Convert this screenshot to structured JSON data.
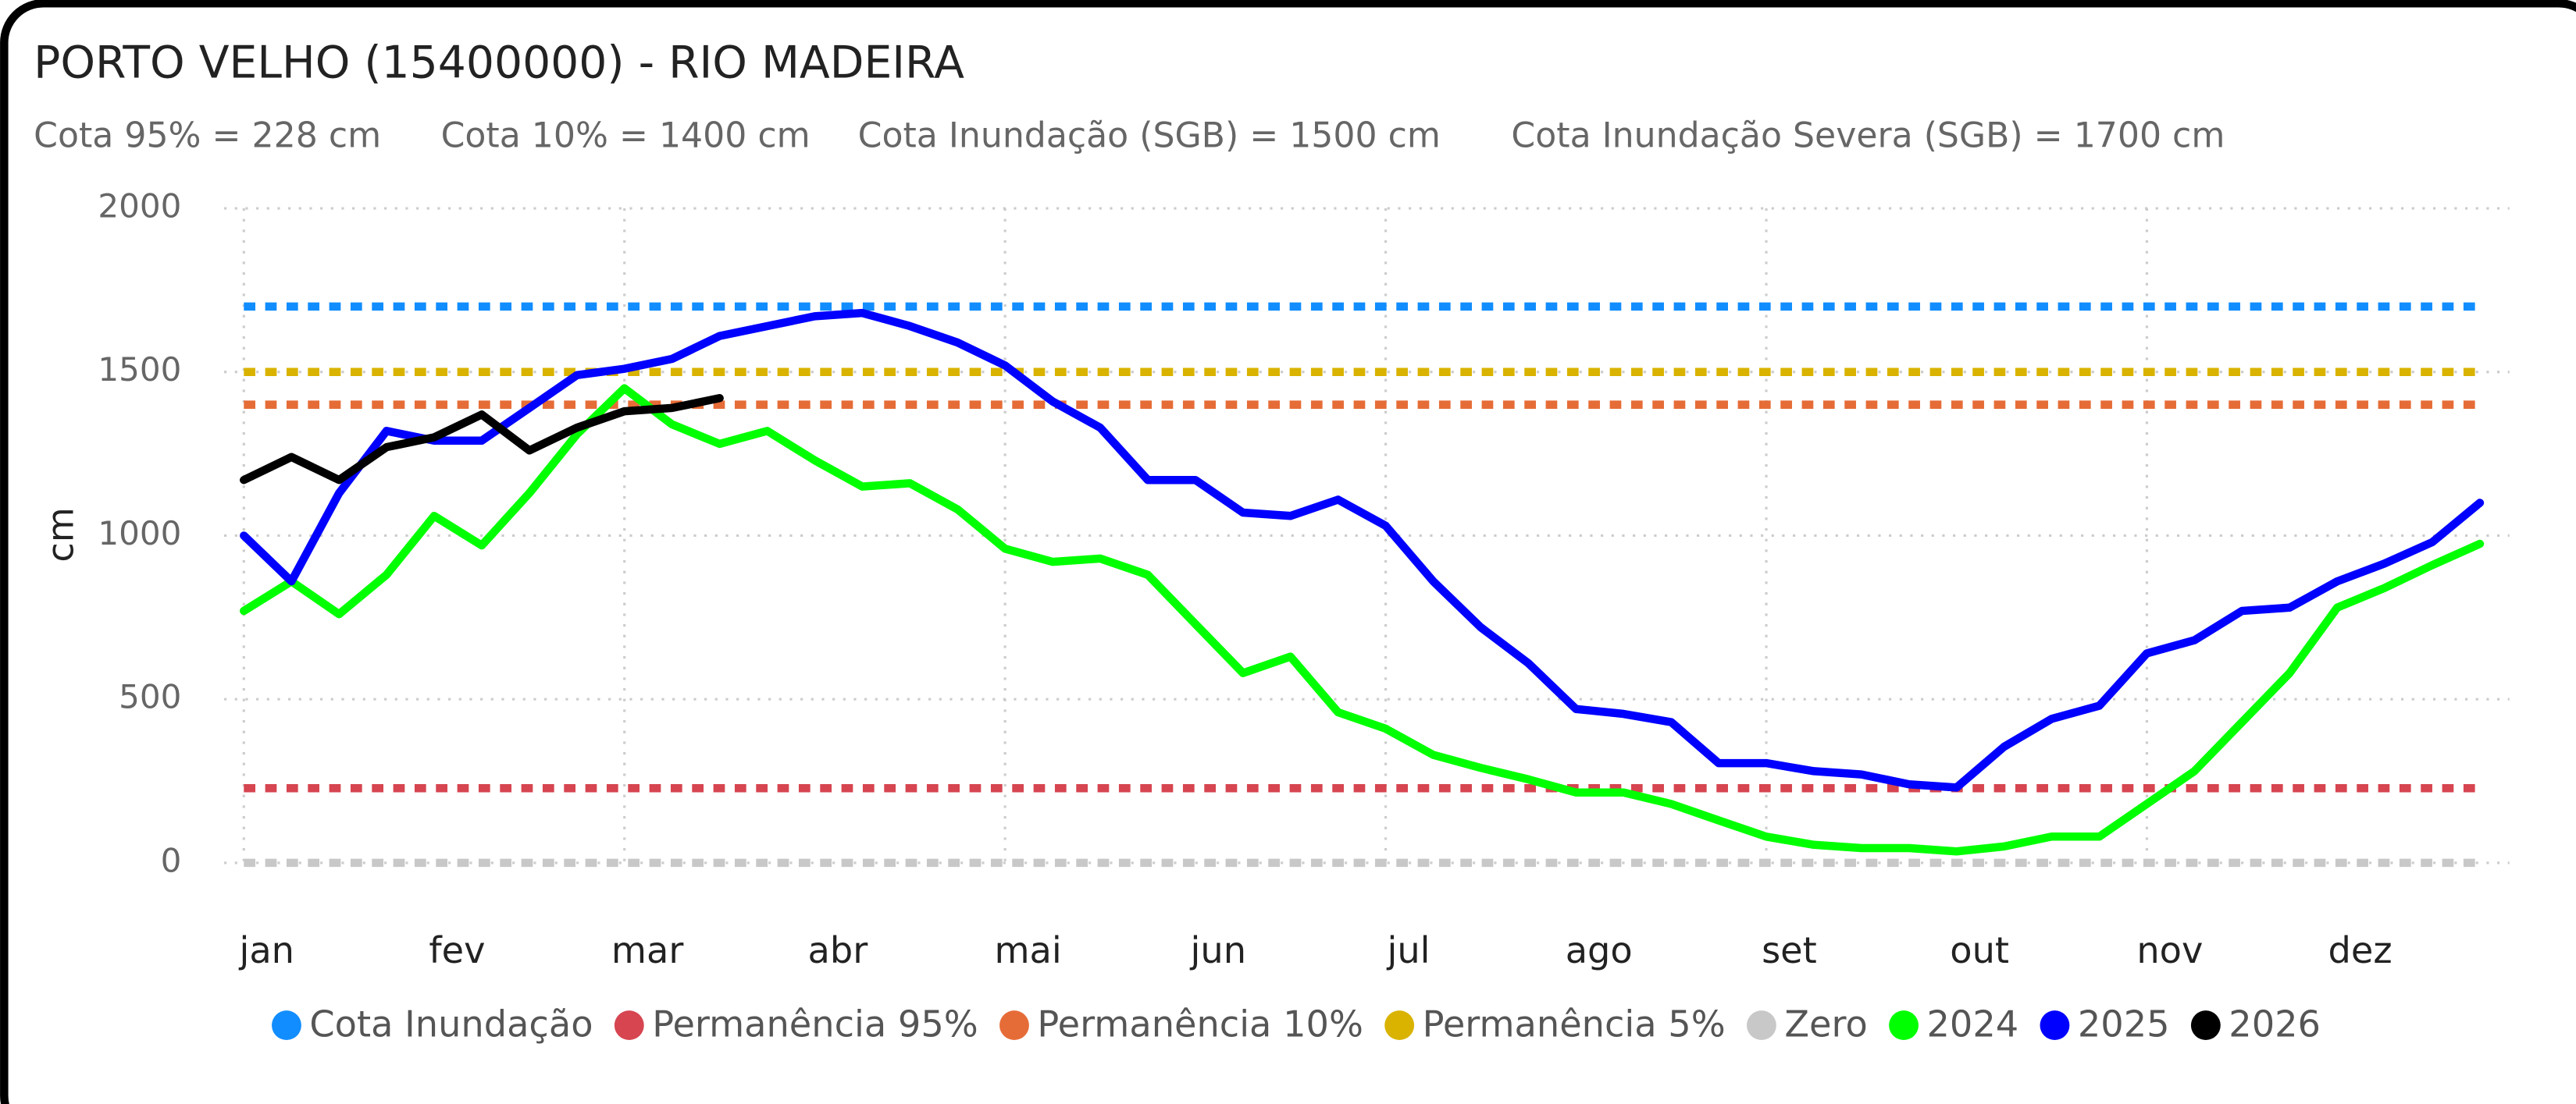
{
  "chart_data": {
    "type": "line",
    "title": "PORTO VELHO (15400000) - RIO MADEIRA",
    "subtitle": [
      "Cota 95% = 228 cm",
      "Cota 10% = 1400 cm",
      "Cota Inundação (SGB) = 1500 cm",
      "Cota Inundação Severa (SGB) = 1700 cm"
    ],
    "y_label": "cm",
    "ylim": [
      0,
      2000
    ],
    "yticks": [
      0,
      500,
      1000,
      1500,
      2000
    ],
    "grid": true,
    "categories": [
      "jan",
      null,
      null,
      null,
      "fev",
      null,
      null,
      null,
      "mar",
      null,
      null,
      null,
      "abr",
      null,
      null,
      null,
      "mai",
      null,
      null,
      null,
      "jun",
      null,
      null,
      null,
      "jul",
      null,
      null,
      null,
      "ago",
      null,
      null,
      null,
      "set",
      null,
      null,
      null,
      "out",
      null,
      null,
      null,
      "nov",
      null,
      null,
      null,
      "dez",
      null,
      null,
      null
    ],
    "series": [
      {
        "name": "Cota Inundação",
        "color": "#118dff",
        "value": 1700
      },
      {
        "name": "Permanência 95%",
        "color": "#d64550",
        "value": 228
      },
      {
        "name": "Permanência 10%",
        "color": "#e66c37",
        "value": 1400
      },
      {
        "name": "Permanência 5%",
        "color": "#d9b300",
        "value": 1500
      },
      {
        "name": "Zero",
        "color": "#c8c8c8",
        "value": 0
      },
      {
        "name": "2024",
        "color": "#00ff00",
        "values": [
          770,
          860,
          760,
          880,
          1060,
          970,
          1130,
          1310,
          1450,
          1340,
          1280,
          1320,
          1230,
          1150,
          1160,
          1080,
          960,
          920,
          930,
          880,
          730,
          580,
          630,
          460,
          410,
          330,
          290,
          255,
          215,
          215,
          180,
          130,
          80,
          55,
          45,
          45,
          35,
          50,
          80,
          80,
          180,
          280,
          430,
          580,
          780,
          840,
          910,
          975
        ]
      },
      {
        "name": "2025",
        "color": "#0000ff",
        "values": [
          1000,
          860,
          1130,
          1320,
          1290,
          1290,
          1390,
          1490,
          1510,
          1540,
          1610,
          1640,
          1670,
          1680,
          1640,
          1590,
          1520,
          1410,
          1330,
          1170,
          1170,
          1070,
          1060,
          1110,
          1030,
          860,
          720,
          610,
          470,
          455,
          430,
          305,
          305,
          280,
          270,
          240,
          230,
          355,
          440,
          480,
          640,
          680,
          770,
          780,
          860,
          915,
          980,
          1100
        ]
      },
      {
        "name": "2026",
        "color": "#000000",
        "values": [
          1170,
          1240,
          1170,
          1270,
          1300,
          1370,
          1260,
          1330,
          1380,
          1390,
          1420,
          null,
          null,
          null,
          null,
          null,
          null,
          null,
          null,
          null,
          null,
          null,
          null,
          null,
          null,
          null,
          null,
          null,
          null,
          null,
          null,
          null,
          null,
          null,
          null,
          null,
          null,
          null,
          null,
          null,
          null,
          null,
          null,
          null,
          null,
          null,
          null,
          null
        ]
      }
    ]
  }
}
